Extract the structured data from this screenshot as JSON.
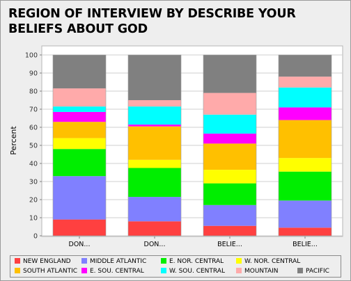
{
  "chart_data": {
    "type": "bar",
    "stacked": true,
    "title": "REGION OF INTERVIEW BY DESCRIBE YOUR BELIEFS ABOUT GOD",
    "xlabel": "",
    "ylabel": "Percent",
    "ylim": [
      0,
      100
    ],
    "yticks": [
      0,
      10,
      20,
      30,
      40,
      50,
      60,
      70,
      80,
      90,
      100
    ],
    "categories": [
      "DON...",
      "DON...",
      "BELIE...",
      "BELIE..."
    ],
    "grid": true,
    "legend_position": "bottom",
    "series": [
      {
        "name": "NEW ENGLAND",
        "color": "#ff4040",
        "values": [
          9,
          8,
          5.5,
          4.5
        ]
      },
      {
        "name": "MIDDLE ATLANTIC",
        "color": "#8080ff",
        "values": [
          24,
          13.5,
          11.5,
          15
        ]
      },
      {
        "name": "E. NOR. CENTRAL",
        "color": "#00ee00",
        "values": [
          15,
          16,
          12,
          16
        ]
      },
      {
        "name": "W. NOR. CENTRAL",
        "color": "#ffff00",
        "values": [
          6,
          4.5,
          7.5,
          7.5
        ]
      },
      {
        "name": "SOUTH ATLANTIC",
        "color": "#ffc000",
        "values": [
          9,
          18.5,
          14.5,
          21
        ]
      },
      {
        "name": "E. SOU. CENTRAL",
        "color": "#ff00ff",
        "values": [
          5.5,
          1,
          5.5,
          7
        ]
      },
      {
        "name": "W. SOU. CENTRAL",
        "color": "#00ffff",
        "values": [
          3,
          10,
          10.5,
          11
        ]
      },
      {
        "name": "MOUNTAIN",
        "color": "#ffaaaa",
        "values": [
          10,
          3.5,
          12,
          6
        ]
      },
      {
        "name": "PACIFIC",
        "color": "#808080",
        "values": [
          18.5,
          25,
          21,
          12
        ]
      }
    ]
  }
}
